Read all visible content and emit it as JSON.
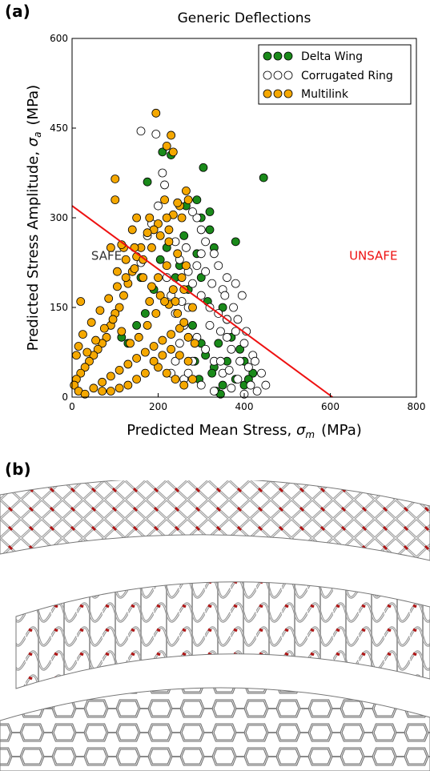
{
  "panels": {
    "a_label": "(a)",
    "b_label": "(b)"
  },
  "chart_data": {
    "type": "scatter",
    "title": "Generic Deflections",
    "xlabel_text": "Predicted Mean Stress, ",
    "xlabel_symbol": "σ",
    "xlabel_sub": "m",
    "xlabel_unit": "(MPa)",
    "ylabel_text": "Predicted Stress Amplitude, ",
    "ylabel_symbol": "σ",
    "ylabel_sub": "a",
    "ylabel_unit": "(MPa)",
    "xlim": [
      0,
      800
    ],
    "ylim": [
      0,
      600
    ],
    "x_ticks": [
      "0",
      "200",
      "400",
      "600",
      "800"
    ],
    "y_ticks": [
      "0",
      "150",
      "300",
      "450",
      "600"
    ],
    "grid": false,
    "legend_position": "top-right",
    "colors": {
      "delta_wing": "#1a8a1a",
      "corrugated_ring": "#ffffff",
      "multilink": "#f5a800",
      "limit_line": "#ee1111"
    },
    "series": [
      {
        "name": "Delta Wing",
        "points": [
          [
            445,
            367
          ],
          [
            305,
            384
          ],
          [
            380,
            260
          ],
          [
            290,
            330
          ],
          [
            210,
            410
          ],
          [
            230,
            405
          ],
          [
            265,
            320
          ],
          [
            175,
            360
          ],
          [
            300,
            300
          ],
          [
            320,
            310
          ],
          [
            260,
            270
          ],
          [
            330,
            250
          ],
          [
            290,
            240
          ],
          [
            350,
            150
          ],
          [
            360,
            130
          ],
          [
            370,
            100
          ],
          [
            390,
            80
          ],
          [
            400,
            60
          ],
          [
            420,
            40
          ],
          [
            380,
            30
          ],
          [
            350,
            20
          ],
          [
            330,
            50
          ],
          [
            340,
            90
          ],
          [
            400,
            20
          ],
          [
            410,
            30
          ],
          [
            360,
            60
          ],
          [
            320,
            280
          ],
          [
            250,
            220
          ],
          [
            240,
            200
          ],
          [
            270,
            180
          ],
          [
            300,
            90
          ],
          [
            310,
            70
          ],
          [
            325,
            40
          ],
          [
            335,
            10
          ],
          [
            345,
            5
          ],
          [
            280,
            120
          ],
          [
            220,
            250
          ],
          [
            205,
            230
          ],
          [
            190,
            180
          ],
          [
            170,
            140
          ],
          [
            150,
            120
          ],
          [
            130,
            90
          ],
          [
            300,
            200
          ],
          [
            315,
            160
          ],
          [
            285,
            60
          ],
          [
            295,
            30
          ],
          [
            115,
            100
          ],
          [
            160,
            200
          ]
        ]
      },
      {
        "name": "Corrugated Ring",
        "points": [
          [
            160,
            445
          ],
          [
            195,
            440
          ],
          [
            210,
            375
          ],
          [
            215,
            355
          ],
          [
            240,
            260
          ],
          [
            250,
            230
          ],
          [
            270,
            210
          ],
          [
            280,
            190
          ],
          [
            300,
            170
          ],
          [
            320,
            150
          ],
          [
            340,
            140
          ],
          [
            360,
            130
          ],
          [
            380,
            110
          ],
          [
            400,
            90
          ],
          [
            420,
            70
          ],
          [
            440,
            40
          ],
          [
            450,
            20
          ],
          [
            430,
            10
          ],
          [
            400,
            5
          ],
          [
            370,
            15
          ],
          [
            350,
            40
          ],
          [
            330,
            60
          ],
          [
            310,
            80
          ],
          [
            290,
            100
          ],
          [
            260,
            120
          ],
          [
            250,
            90
          ],
          [
            240,
            60
          ],
          [
            230,
            40
          ],
          [
            260,
            30
          ],
          [
            300,
            20
          ],
          [
            330,
            10
          ],
          [
            360,
            200
          ],
          [
            350,
            180
          ],
          [
            340,
            220
          ],
          [
            330,
            240
          ],
          [
            310,
            260
          ],
          [
            300,
            280
          ],
          [
            290,
            300
          ],
          [
            280,
            310
          ],
          [
            360,
            100
          ],
          [
            370,
            80
          ],
          [
            390,
            60
          ],
          [
            410,
            50
          ],
          [
            280,
            60
          ],
          [
            270,
            40
          ],
          [
            240,
            140
          ],
          [
            230,
            170
          ],
          [
            220,
            200
          ],
          [
            320,
            120
          ],
          [
            345,
            110
          ],
          [
            355,
            170
          ],
          [
            375,
            150
          ],
          [
            385,
            130
          ],
          [
            200,
            320
          ],
          [
            185,
            290
          ],
          [
            175,
            270
          ],
          [
            160,
            225
          ],
          [
            405,
            110
          ],
          [
            395,
            170
          ],
          [
            380,
            190
          ],
          [
            300,
            240
          ],
          [
            270,
            150
          ],
          [
            255,
            160
          ],
          [
            325,
            190
          ],
          [
            310,
            210
          ],
          [
            290,
            220
          ],
          [
            265,
            250
          ],
          [
            345,
            60
          ],
          [
            365,
            45
          ],
          [
            385,
            30
          ],
          [
            415,
            20
          ],
          [
            425,
            60
          ]
        ]
      },
      {
        "name": "Multilink",
        "points": [
          [
            195,
            475
          ],
          [
            230,
            438
          ],
          [
            220,
            420
          ],
          [
            235,
            410
          ],
          [
            100,
            365
          ],
          [
            265,
            345
          ],
          [
            270,
            330
          ],
          [
            250,
            320
          ],
          [
            235,
            305
          ],
          [
            220,
            300
          ],
          [
            200,
            290
          ],
          [
            190,
            280
          ],
          [
            180,
            300
          ],
          [
            175,
            275
          ],
          [
            160,
            250
          ],
          [
            150,
            235
          ],
          [
            140,
            210
          ],
          [
            130,
            190
          ],
          [
            120,
            170
          ],
          [
            110,
            150
          ],
          [
            100,
            140
          ],
          [
            90,
            120
          ],
          [
            80,
            100
          ],
          [
            70,
            90
          ],
          [
            60,
            80
          ],
          [
            50,
            70
          ],
          [
            40,
            60
          ],
          [
            30,
            50
          ],
          [
            20,
            40
          ],
          [
            10,
            30
          ],
          [
            5,
            20
          ],
          [
            15,
            10
          ],
          [
            30,
            5
          ],
          [
            50,
            15
          ],
          [
            70,
            25
          ],
          [
            90,
            35
          ],
          [
            110,
            45
          ],
          [
            130,
            55
          ],
          [
            150,
            65
          ],
          [
            170,
            75
          ],
          [
            190,
            85
          ],
          [
            210,
            95
          ],
          [
            230,
            105
          ],
          [
            250,
            115
          ],
          [
            260,
            125
          ],
          [
            245,
            140
          ],
          [
            225,
            155
          ],
          [
            205,
            170
          ],
          [
            185,
            185
          ],
          [
            165,
            200
          ],
          [
            145,
            215
          ],
          [
            125,
            200
          ],
          [
            105,
            185
          ],
          [
            85,
            165
          ],
          [
            65,
            145
          ],
          [
            45,
            125
          ],
          [
            25,
            105
          ],
          [
            15,
            85
          ],
          [
            35,
            75
          ],
          [
            55,
            95
          ],
          [
            75,
            115
          ],
          [
            95,
            130
          ],
          [
            115,
            110
          ],
          [
            135,
            90
          ],
          [
            155,
            100
          ],
          [
            175,
            120
          ],
          [
            195,
            140
          ],
          [
            215,
            160
          ],
          [
            235,
            180
          ],
          [
            255,
            200
          ],
          [
            265,
            220
          ],
          [
            245,
            240
          ],
          [
            225,
            260
          ],
          [
            205,
            270
          ],
          [
            185,
            250
          ],
          [
            165,
            230
          ],
          [
            145,
            250
          ],
          [
            125,
            230
          ],
          [
            105,
            210
          ],
          [
            200,
            50
          ],
          [
            220,
            40
          ],
          [
            240,
            30
          ],
          [
            260,
            20
          ],
          [
            280,
            30
          ],
          [
            270,
            60
          ],
          [
            250,
            70
          ],
          [
            230,
            80
          ],
          [
            210,
            70
          ],
          [
            190,
            60
          ],
          [
            170,
            40
          ],
          [
            150,
            30
          ],
          [
            130,
            20
          ],
          [
            110,
            15
          ],
          [
            90,
            10
          ],
          [
            70,
            10
          ],
          [
            180,
            160
          ],
          [
            200,
            200
          ],
          [
            220,
            220
          ],
          [
            240,
            160
          ],
          [
            260,
            180
          ],
          [
            280,
            150
          ],
          [
            270,
            100
          ],
          [
            285,
            90
          ],
          [
            20,
            160
          ],
          [
            10,
            70
          ],
          [
            120,
            250
          ],
          [
            140,
            280
          ],
          [
            150,
            300
          ],
          [
            100,
            330
          ],
          [
            90,
            250
          ],
          [
            115,
            255
          ],
          [
            255,
            300
          ],
          [
            215,
            330
          ],
          [
            245,
            325
          ],
          [
            225,
            280
          ]
        ]
      }
    ],
    "limit_line": {
      "x": [
        0,
        605
      ],
      "y": [
        320,
        0
      ]
    },
    "annotations": [
      {
        "text": "SAFE",
        "x": 80,
        "y": 230
      },
      {
        "text": "UNSAFE",
        "x": 700,
        "y": 230
      }
    ]
  }
}
